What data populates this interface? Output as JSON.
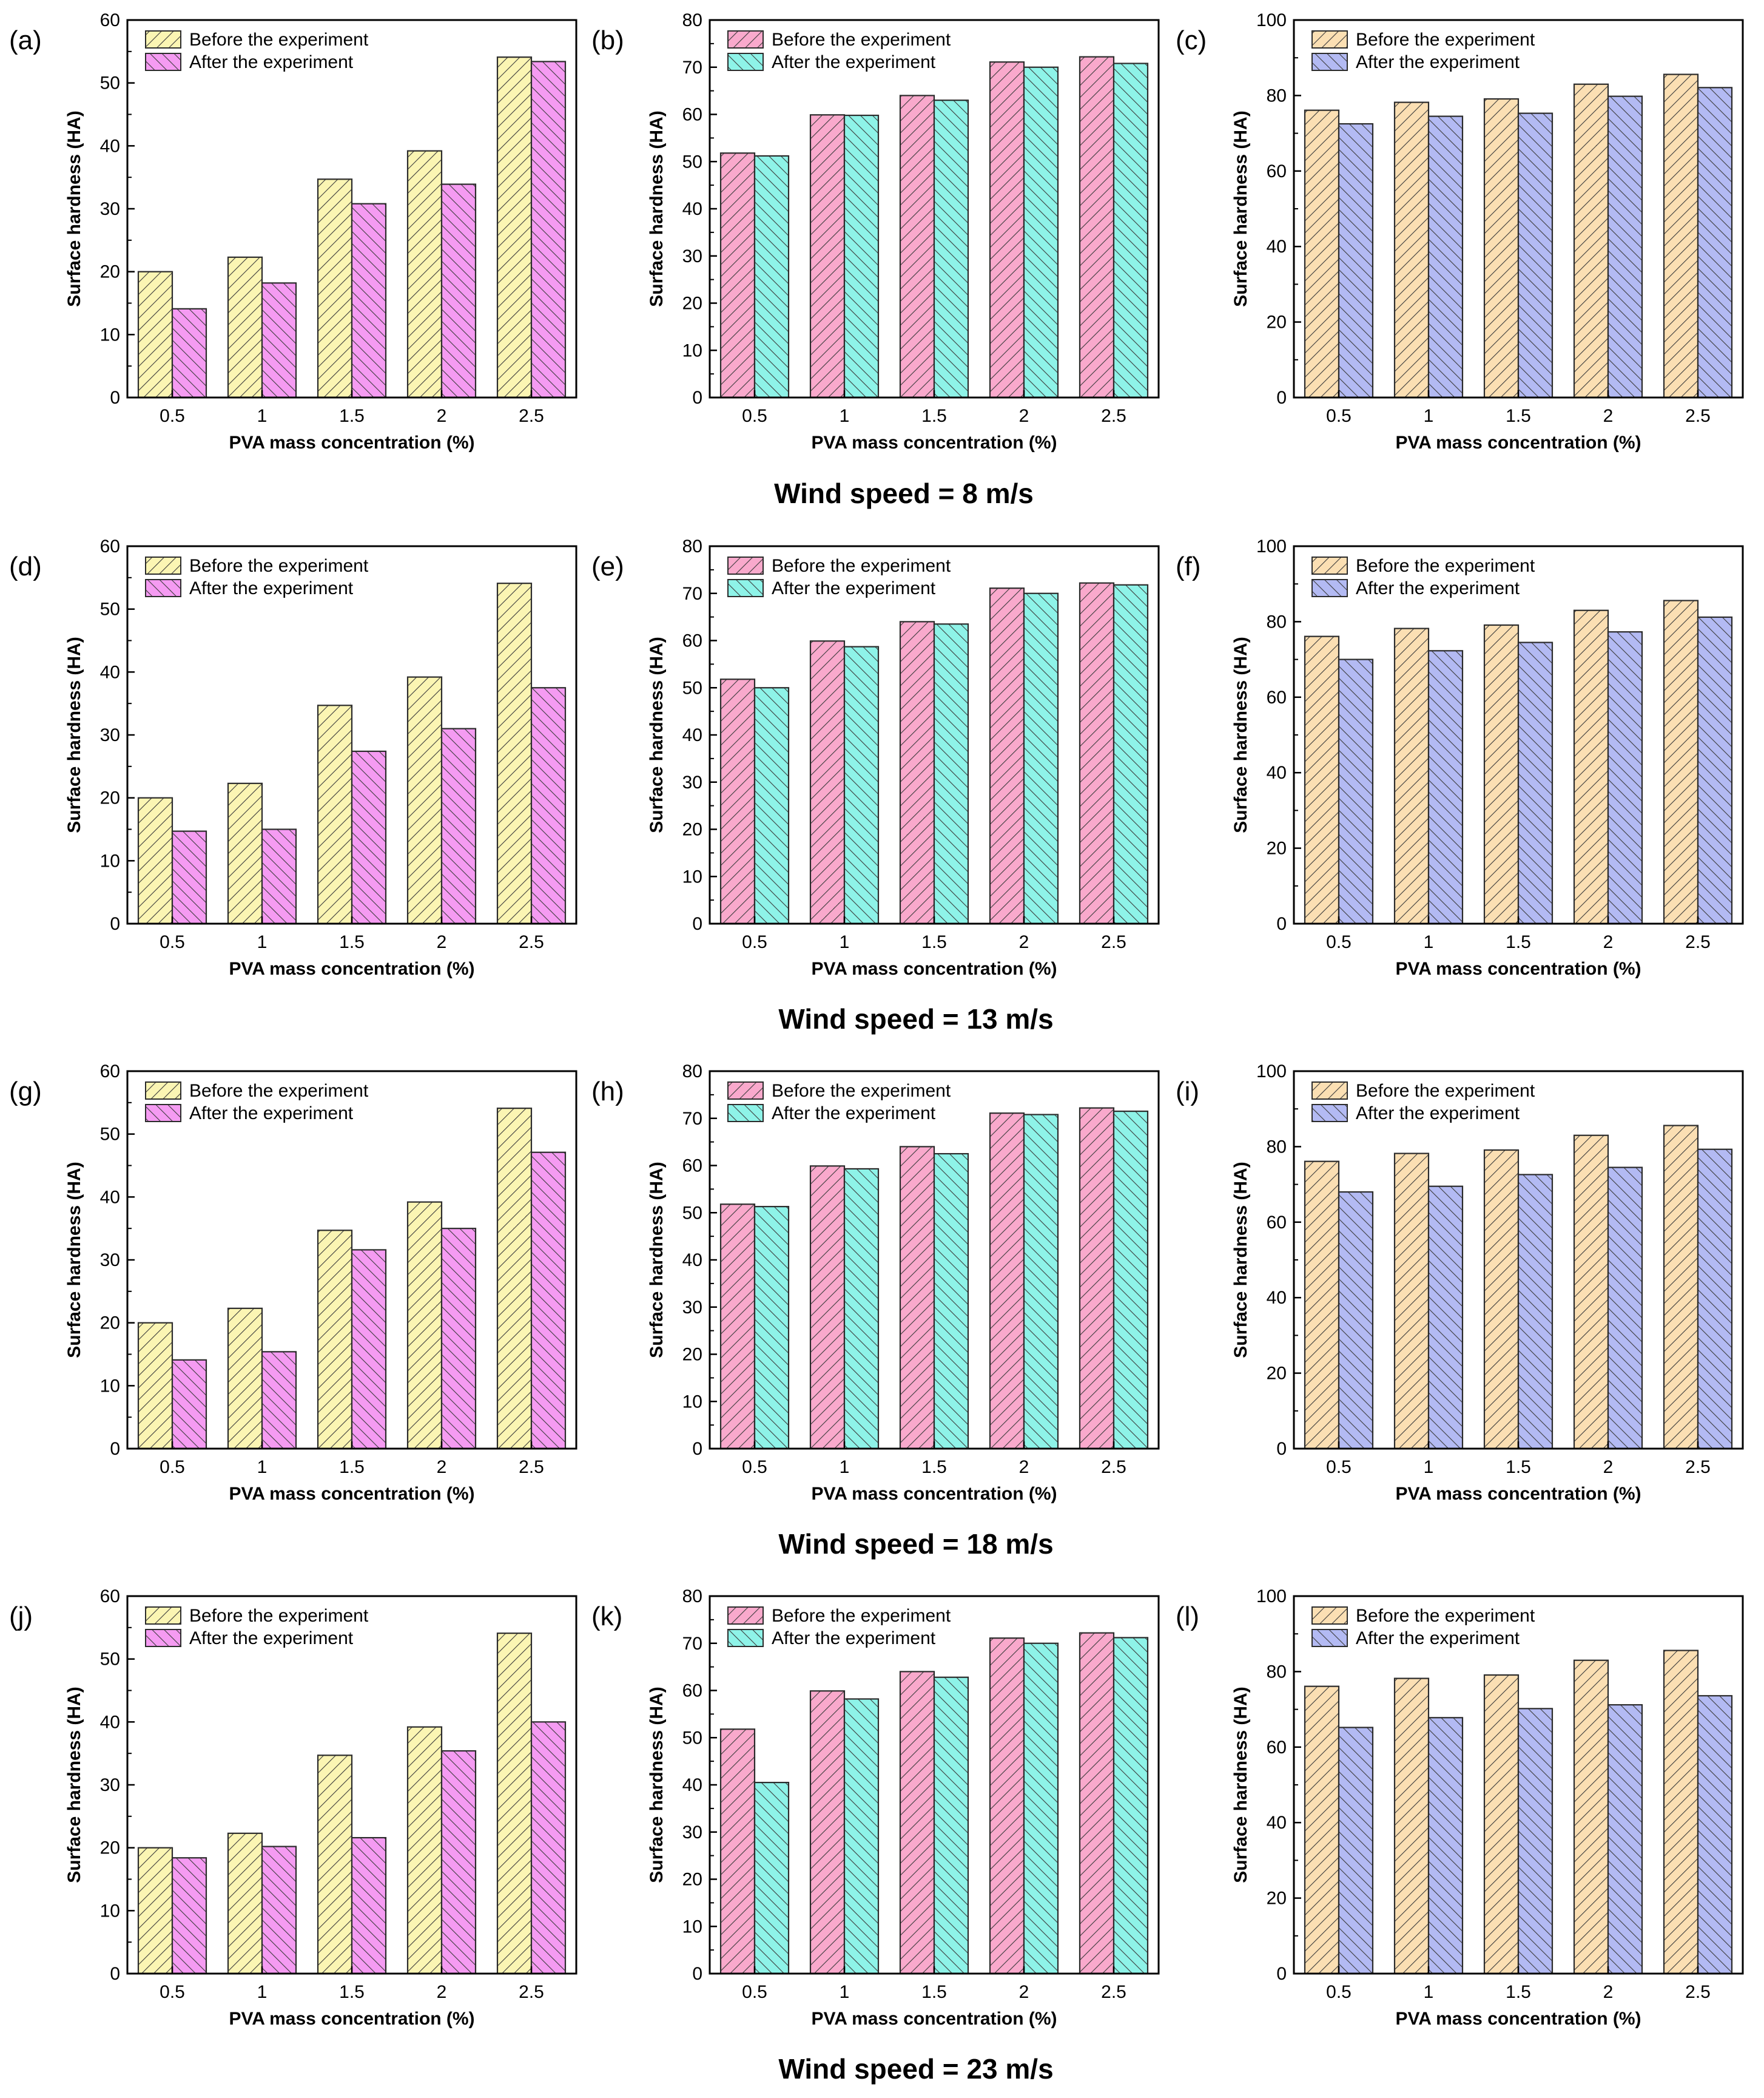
{
  "figure": {
    "row_titles": [
      "Wind speed = 8 m/s",
      "Wind speed = 13 m/s",
      "Wind speed = 18 m/s",
      "Wind speed = 23 m/s"
    ]
  },
  "chart_data": [
    {
      "label": "(a)",
      "type": "bar",
      "categories": [
        "0.5",
        "1",
        "1.5",
        "2",
        "2.5"
      ],
      "xlabel": "PVA mass concentration (%)",
      "ylabel": "Surface hardness (HA)",
      "ylim": [
        0,
        60
      ],
      "yticks": [
        0,
        10,
        20,
        30,
        40,
        50,
        60
      ],
      "legend_position": "top-left",
      "series": [
        {
          "name": "Before the experiment",
          "color": "#fbf5b3",
          "values": [
            20.0,
            22.3,
            34.7,
            39.2,
            54.1
          ]
        },
        {
          "name": "After the experiment",
          "color": "#f59bf2",
          "values": [
            14.1,
            18.2,
            30.8,
            33.9,
            53.4
          ]
        }
      ]
    },
    {
      "label": "(b)",
      "type": "bar",
      "categories": [
        "0.5",
        "1",
        "1.5",
        "2",
        "2.5"
      ],
      "xlabel": "PVA mass concentration (%)",
      "ylabel": "Surface hardness (HA)",
      "ylim": [
        0,
        80
      ],
      "yticks": [
        0,
        10,
        20,
        30,
        40,
        50,
        60,
        70,
        80
      ],
      "legend_position": "top-left",
      "series": [
        {
          "name": "Before the experiment",
          "color": "#f9a9cc",
          "values": [
            51.8,
            59.9,
            64.0,
            71.1,
            72.2
          ]
        },
        {
          "name": "After the experiment",
          "color": "#8ef3e8",
          "values": [
            51.2,
            59.8,
            63.0,
            70.0,
            70.8
          ]
        }
      ]
    },
    {
      "label": "(c)",
      "type": "bar",
      "categories": [
        "0.5",
        "1",
        "1.5",
        "2",
        "2.5"
      ],
      "xlabel": "PVA mass concentration (%)",
      "ylabel": "Surface hardness (HA)",
      "ylim": [
        0,
        100
      ],
      "yticks": [
        0,
        20,
        40,
        60,
        80,
        100
      ],
      "legend_position": "top-left",
      "series": [
        {
          "name": "Before the experiment",
          "color": "#fbdfb3",
          "values": [
            76.1,
            78.2,
            79.1,
            83.0,
            85.6
          ]
        },
        {
          "name": "After the experiment",
          "color": "#b3baf3",
          "values": [
            72.5,
            74.5,
            75.3,
            79.8,
            82.1
          ]
        }
      ]
    },
    {
      "label": "(d)",
      "type": "bar",
      "categories": [
        "0.5",
        "1",
        "1.5",
        "2",
        "2.5"
      ],
      "xlabel": "PVA mass concentration (%)",
      "ylabel": "Surface hardness (HA)",
      "ylim": [
        0,
        60
      ],
      "yticks": [
        0,
        10,
        20,
        30,
        40,
        50,
        60
      ],
      "legend_position": "top-left",
      "series": [
        {
          "name": "Before the experiment",
          "color": "#fbf5b3",
          "values": [
            20.0,
            22.3,
            34.7,
            39.2,
            54.1
          ]
        },
        {
          "name": "After the experiment",
          "color": "#f59bf2",
          "values": [
            14.7,
            15.0,
            27.4,
            31.0,
            37.5
          ]
        }
      ]
    },
    {
      "label": "(e)",
      "type": "bar",
      "categories": [
        "0.5",
        "1",
        "1.5",
        "2",
        "2.5"
      ],
      "xlabel": "PVA mass concentration (%)",
      "ylabel": "Surface hardness (HA)",
      "ylim": [
        0,
        80
      ],
      "yticks": [
        0,
        10,
        20,
        30,
        40,
        50,
        60,
        70,
        80
      ],
      "legend_position": "top-left",
      "series": [
        {
          "name": "Before the experiment",
          "color": "#f9a9cc",
          "values": [
            51.8,
            59.9,
            64.0,
            71.1,
            72.2
          ]
        },
        {
          "name": "After the experiment",
          "color": "#8ef3e8",
          "values": [
            50.0,
            58.7,
            63.5,
            70.0,
            71.8
          ]
        }
      ]
    },
    {
      "label": "(f)",
      "type": "bar",
      "categories": [
        "0.5",
        "1",
        "1.5",
        "2",
        "2.5"
      ],
      "xlabel": "PVA mass concentration (%)",
      "ylabel": "Surface hardness (HA)",
      "ylim": [
        0,
        100
      ],
      "yticks": [
        0,
        20,
        40,
        60,
        80,
        100
      ],
      "legend_position": "top-left",
      "series": [
        {
          "name": "Before the experiment",
          "color": "#fbdfb3",
          "values": [
            76.1,
            78.2,
            79.1,
            83.0,
            85.6
          ]
        },
        {
          "name": "After the experiment",
          "color": "#b3baf3",
          "values": [
            70.0,
            72.3,
            74.5,
            77.3,
            81.2
          ]
        }
      ]
    },
    {
      "label": "(g)",
      "type": "bar",
      "categories": [
        "0.5",
        "1",
        "1.5",
        "2",
        "2.5"
      ],
      "xlabel": "PVA mass concentration (%)",
      "ylabel": "Surface hardness (HA)",
      "ylim": [
        0,
        60
      ],
      "yticks": [
        0,
        10,
        20,
        30,
        40,
        50,
        60
      ],
      "legend_position": "top-left",
      "series": [
        {
          "name": "Before the experiment",
          "color": "#fbf5b3",
          "values": [
            20.0,
            22.3,
            34.7,
            39.2,
            54.1
          ]
        },
        {
          "name": "After the experiment",
          "color": "#f59bf2",
          "values": [
            14.1,
            15.4,
            31.6,
            35.0,
            47.1
          ]
        }
      ]
    },
    {
      "label": "(h)",
      "type": "bar",
      "categories": [
        "0.5",
        "1",
        "1.5",
        "2",
        "2.5"
      ],
      "xlabel": "PVA mass concentration (%)",
      "ylabel": "Surface hardness (HA)",
      "ylim": [
        0,
        80
      ],
      "yticks": [
        0,
        10,
        20,
        30,
        40,
        50,
        60,
        70,
        80
      ],
      "legend_position": "top-left",
      "series": [
        {
          "name": "Before the experiment",
          "color": "#f9a9cc",
          "values": [
            51.8,
            59.9,
            64.0,
            71.1,
            72.2
          ]
        },
        {
          "name": "After the experiment",
          "color": "#8ef3e8",
          "values": [
            51.3,
            59.3,
            62.5,
            70.8,
            71.5
          ]
        }
      ]
    },
    {
      "label": "(i)",
      "type": "bar",
      "categories": [
        "0.5",
        "1",
        "1.5",
        "2",
        "2.5"
      ],
      "xlabel": "PVA mass concentration (%)",
      "ylabel": "Surface hardness (HA)",
      "ylim": [
        0,
        100
      ],
      "yticks": [
        0,
        20,
        40,
        60,
        80,
        100
      ],
      "legend_position": "top-left",
      "series": [
        {
          "name": "Before the experiment",
          "color": "#fbdfb3",
          "values": [
            76.1,
            78.2,
            79.1,
            83.0,
            85.6
          ]
        },
        {
          "name": "After the experiment",
          "color": "#b3baf3",
          "values": [
            68.0,
            69.5,
            72.6,
            74.5,
            79.3
          ]
        }
      ]
    },
    {
      "label": "(j)",
      "type": "bar",
      "categories": [
        "0.5",
        "1",
        "1.5",
        "2",
        "2.5"
      ],
      "xlabel": "PVA mass concentration (%)",
      "ylabel": "Surface hardness (HA)",
      "ylim": [
        0,
        60
      ],
      "yticks": [
        0,
        10,
        20,
        30,
        40,
        50,
        60
      ],
      "legend_position": "top-left",
      "series": [
        {
          "name": "Before the experiment",
          "color": "#fbf5b3",
          "values": [
            20.0,
            22.3,
            34.7,
            39.2,
            54.1
          ]
        },
        {
          "name": "After the experiment",
          "color": "#f59bf2",
          "values": [
            18.4,
            20.2,
            21.6,
            35.4,
            40.0
          ]
        }
      ]
    },
    {
      "label": "(k)",
      "type": "bar",
      "categories": [
        "0.5",
        "1",
        "1.5",
        "2",
        "2.5"
      ],
      "xlabel": "PVA mass concentration (%)",
      "ylabel": "Surface hardness (HA)",
      "ylim": [
        0,
        80
      ],
      "yticks": [
        0,
        10,
        20,
        30,
        40,
        50,
        60,
        70,
        80
      ],
      "legend_position": "top-left",
      "series": [
        {
          "name": "Before the experiment",
          "color": "#f9a9cc",
          "values": [
            51.8,
            59.9,
            64.0,
            71.1,
            72.2
          ]
        },
        {
          "name": "After the experiment",
          "color": "#8ef3e8",
          "values": [
            40.5,
            58.2,
            62.8,
            70.0,
            71.2
          ]
        }
      ]
    },
    {
      "label": "(l)",
      "type": "bar",
      "categories": [
        "0.5",
        "1",
        "1.5",
        "2",
        "2.5"
      ],
      "xlabel": "PVA mass concentration (%)",
      "ylabel": "Surface hardness (HA)",
      "ylim": [
        0,
        100
      ],
      "yticks": [
        0,
        20,
        40,
        60,
        80,
        100
      ],
      "legend_position": "top-left",
      "series": [
        {
          "name": "Before the experiment",
          "color": "#fbdfb3",
          "values": [
            76.1,
            78.2,
            79.1,
            83.0,
            85.6
          ]
        },
        {
          "name": "After the experiment",
          "color": "#b3baf3",
          "values": [
            65.2,
            67.8,
            70.2,
            71.2,
            73.6
          ]
        }
      ]
    }
  ]
}
